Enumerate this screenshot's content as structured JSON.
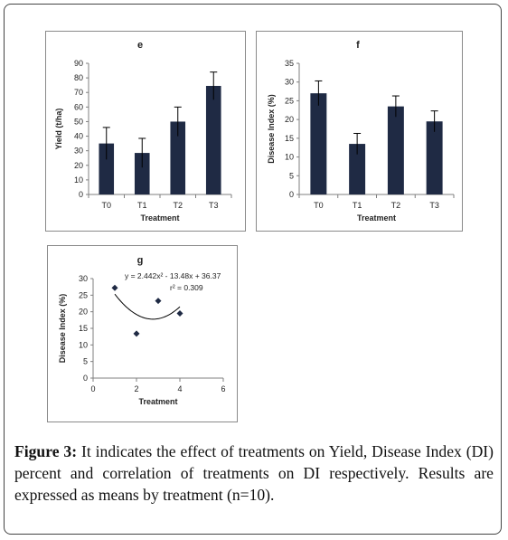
{
  "caption": {
    "label": "Figure 3:",
    "text": " It indicates the effect of treatments on Yield, Disease Index (DI) percent and correlation of treatments on DI respectively. Results are expressed as means by treatment (n=10)."
  },
  "colors": {
    "bar": "#1f2a44",
    "marker": "#1f2a44",
    "axis": "#7f7f7f",
    "text": "#222222"
  },
  "chart_data": [
    {
      "id": "e",
      "type": "bar",
      "title": "e",
      "xlabel": "Treatment",
      "ylabel": "Yield (t/ha)",
      "categories": [
        "T0",
        "T1",
        "T2",
        "T3"
      ],
      "values": [
        35,
        28.5,
        50,
        74.5
      ],
      "errors": [
        11,
        10,
        10,
        9.5
      ],
      "ylim": [
        0,
        90
      ],
      "yticks": [
        0,
        10,
        20,
        30,
        40,
        50,
        60,
        70,
        80,
        90
      ],
      "grid": false
    },
    {
      "id": "f",
      "type": "bar",
      "title": "f",
      "xlabel": "Treatment",
      "ylabel": "Disease Index (%)",
      "categories": [
        "T0",
        "T1",
        "T2",
        "T3"
      ],
      "values": [
        27,
        13.5,
        23.5,
        19.5
      ],
      "errors": [
        3.3,
        2.8,
        2.8,
        2.8
      ],
      "ylim": [
        0,
        35
      ],
      "yticks": [
        0,
        5,
        10,
        15,
        20,
        25,
        30,
        35
      ],
      "grid": false
    },
    {
      "id": "g",
      "type": "scatter",
      "title": "g",
      "xlabel": "Treatment",
      "ylabel": "Disease Index (%)",
      "x": [
        1,
        2,
        3,
        4
      ],
      "y": [
        27.2,
        13.4,
        23.3,
        19.5
      ],
      "xlim": [
        0,
        6
      ],
      "xticks": [
        0,
        2,
        4,
        6
      ],
      "ylim": [
        0,
        30
      ],
      "yticks": [
        0,
        5,
        10,
        15,
        20,
        25,
        30
      ],
      "trendline": {
        "type": "polynomial",
        "a": 2.442,
        "b": -13.48,
        "c": 36.37,
        "x_range": [
          1,
          4
        ]
      },
      "annotations": [
        "y = 2.442x² - 13.48x + 36.37",
        "r² = 0.309"
      ],
      "grid": false
    }
  ]
}
